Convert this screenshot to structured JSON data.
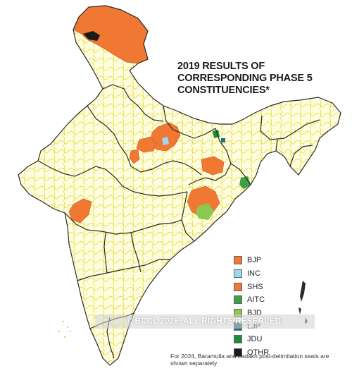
{
  "title": {
    "line1": "2019 RESULTS OF",
    "line2": "CORRESPONDING PHASE 5",
    "line3": "CONSTITUENCIES*"
  },
  "legend": [
    {
      "label": "BJP",
      "color": "#f07832"
    },
    {
      "label": "INC",
      "color": "#9cd8f0"
    },
    {
      "label": "SHS",
      "color": "#f07832"
    },
    {
      "label": "AITC",
      "color": "#3aa046"
    },
    {
      "label": "BJD",
      "color": "#8cc850"
    },
    {
      "label": "LJP",
      "color": "#1e6e8c"
    },
    {
      "label": "JDU",
      "color": "#1e8c3c"
    },
    {
      "label": "OTHR",
      "color": "#1a1a1a"
    }
  ],
  "watermark": "© BCCL 2026. ALL RIGHTS RESERVED.",
  "footnote": "For 2024, Baramulla and Ladakh post-delimitation seats are shown separately",
  "colors": {
    "land": "#fffde0",
    "constituency_border": "#e8d820",
    "state_border": "#2a2a2a"
  }
}
